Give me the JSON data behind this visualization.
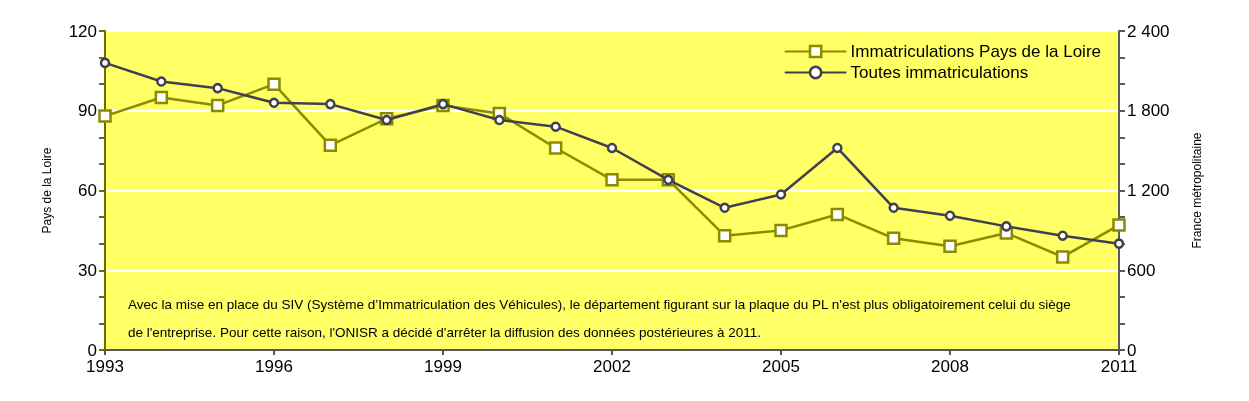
{
  "chart_data": {
    "type": "line",
    "ylabel": "Pays de la Loire",
    "y2label": "France métropolitaine",
    "x": [
      1993,
      1994,
      1995,
      1996,
      1997,
      1998,
      1999,
      2000,
      2001,
      2002,
      2003,
      2004,
      2005,
      2006,
      2007,
      2008,
      2009,
      2010,
      2011
    ],
    "xlim": [
      1993,
      2011
    ],
    "xticks": [
      1993,
      1996,
      1999,
      2002,
      2005,
      2008,
      2011
    ],
    "ylim": [
      0,
      120
    ],
    "yticks": [
      0,
      {
        "value": 10,
        "label": null
      },
      {
        "value": 20,
        "label": null
      },
      30,
      {
        "value": 40,
        "label": null
      },
      {
        "value": 50,
        "label": null
      },
      60,
      {
        "value": 70,
        "label": null
      },
      {
        "value": 80,
        "label": null
      },
      90,
      {
        "value": 100,
        "label": null
      },
      {
        "value": 110,
        "label": null
      },
      120
    ],
    "y2lim": [
      0,
      2400
    ],
    "y2ticks": [
      0,
      {
        "value": 200,
        "label": null
      },
      {
        "value": 400,
        "label": null
      },
      600,
      {
        "value": 800,
        "label": null
      },
      {
        "value": 1000,
        "label": null
      },
      {
        "value": 1200,
        "label": "1 200"
      },
      {
        "value": 1400,
        "label": null
      },
      {
        "value": 1600,
        "label": null
      },
      {
        "value": 1800,
        "label": "1 800"
      },
      {
        "value": 2000,
        "label": null
      },
      {
        "value": 2200,
        "label": null
      },
      {
        "value": 2400,
        "label": "2 400"
      }
    ],
    "series": [
      {
        "name": "Immatriculations Pays de la Loire",
        "color": "#8b8b00",
        "marker": "square",
        "values": [
          88,
          95,
          92,
          100,
          77,
          87,
          92,
          89,
          76,
          64,
          64,
          43,
          45,
          51,
          42,
          39,
          44,
          35,
          47
        ]
      },
      {
        "name": "Toutes immatriculations",
        "color": "#404050",
        "marker": "circle",
        "axis": "y2",
        "values": [
          2160,
          2020,
          1970,
          1860,
          1850,
          1730,
          1850,
          1730,
          1680,
          1520,
          1280,
          1070,
          1170,
          1520,
          1070,
          1010,
          930,
          860,
          800
        ]
      }
    ],
    "grid": "y",
    "legend": "top right",
    "line_style": "solid",
    "annotations": [
      "Avec la mise en place du SIV (Système d’Immatriculation des Véhicules), le département figurant sur la plaque du PL n'est plus obligatoirement celui du siège de l'entreprise. Pour cette raison, l'ONISR a décidé d'arrêter la diffusion des données postérieures à 2011."
    ]
  }
}
